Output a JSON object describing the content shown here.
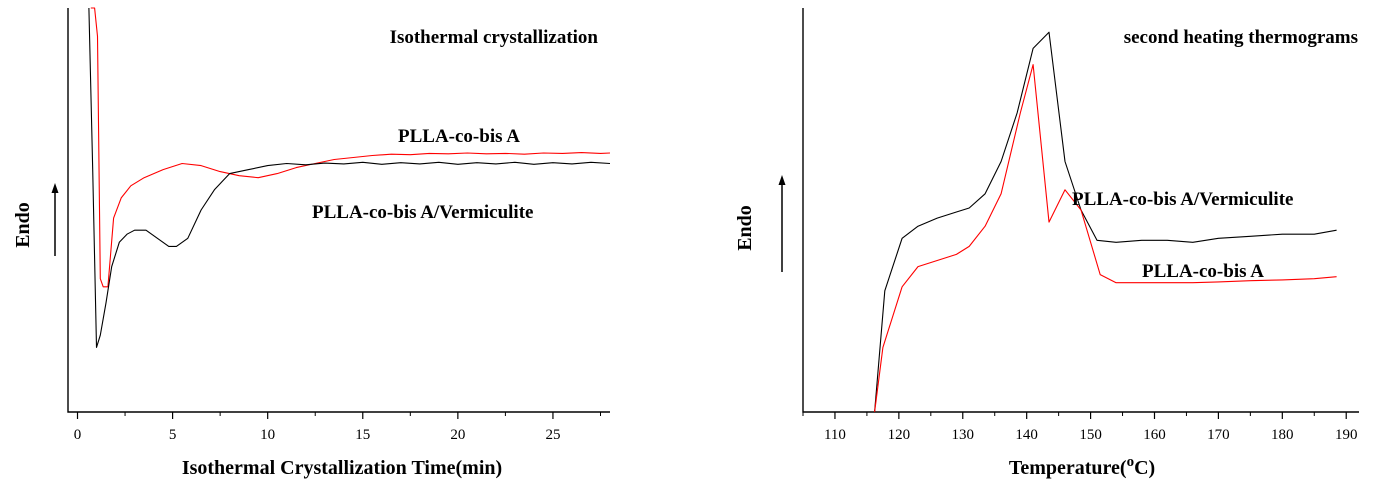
{
  "chart_data": [
    {
      "type": "line",
      "title": "Isothermal crystallization",
      "xlabel": "Isothermal Crystallization Time(min)",
      "ylabel": "Endo",
      "xlim": [
        -0.5,
        28
      ],
      "ylim": [
        0,
        1
      ],
      "xticks": [
        0,
        5,
        10,
        15,
        20,
        25
      ],
      "tick_labels": [
        "0",
        "5",
        "10",
        "15",
        "20",
        "25"
      ],
      "grid": false,
      "legend": "none",
      "series": [
        {
          "name": "PLLA-co-bis A",
          "color": "#ff0000",
          "label": "PLLA-co-bis A",
          "x": [
            0.7,
            0.9,
            1.05,
            1.2,
            1.35,
            1.6,
            1.9,
            2.3,
            2.8,
            3.5,
            4.5,
            5.5,
            6.5,
            7.5,
            8.5,
            9.5,
            10.5,
            11.5,
            12.5,
            13.5,
            14.5,
            15.5,
            16.5,
            17.5,
            18.5,
            19.5,
            20.5,
            21.5,
            22.5,
            23.5,
            24.5,
            25.5,
            26.5,
            27.5,
            28
          ],
          "y": [
            1.0,
            1.0,
            0.93,
            0.33,
            0.31,
            0.31,
            0.48,
            0.53,
            0.56,
            0.58,
            0.6,
            0.615,
            0.61,
            0.595,
            0.585,
            0.58,
            0.59,
            0.605,
            0.615,
            0.625,
            0.63,
            0.635,
            0.638,
            0.637,
            0.64,
            0.639,
            0.641,
            0.639,
            0.64,
            0.638,
            0.641,
            0.64,
            0.642,
            0.64,
            0.641
          ]
        },
        {
          "name": "PLLA-co-bis A/Vermiculite",
          "color": "#000000",
          "label": "PLLA-co-bis A/Vermiculite",
          "x": [
            0.6,
            0.8,
            1.0,
            1.2,
            1.5,
            1.8,
            2.2,
            2.6,
            3.0,
            3.6,
            4.2,
            4.8,
            5.2,
            5.8,
            6.5,
            7.2,
            8.0,
            9.0,
            10.0,
            11.0,
            12.0,
            13.0,
            14.0,
            15.0,
            16.0,
            17.0,
            18.0,
            19.0,
            20.0,
            21.0,
            22.0,
            23.0,
            24.0,
            25.0,
            26.0,
            27.0,
            28.0
          ],
          "y": [
            1.0,
            0.6,
            0.16,
            0.19,
            0.27,
            0.36,
            0.42,
            0.44,
            0.45,
            0.45,
            0.43,
            0.41,
            0.41,
            0.43,
            0.5,
            0.55,
            0.59,
            0.6,
            0.61,
            0.615,
            0.612,
            0.616,
            0.614,
            0.618,
            0.613,
            0.617,
            0.614,
            0.618,
            0.613,
            0.617,
            0.614,
            0.618,
            0.613,
            0.617,
            0.614,
            0.618,
            0.615
          ]
        }
      ]
    },
    {
      "type": "line",
      "title": "second heating thermograms",
      "xlabel": "Temperature(",
      "xlabel_sup": "o",
      "xlabel_suffix": "C)",
      "ylabel": "Endo",
      "xlim": [
        105,
        192
      ],
      "ylim": [
        0,
        1
      ],
      "xticks": [
        110,
        120,
        130,
        140,
        150,
        160,
        170,
        180,
        190
      ],
      "tick_labels": [
        "110",
        "120",
        "130",
        "140",
        "150",
        "160",
        "170",
        "180",
        "190"
      ],
      "grid": false,
      "legend": "none",
      "series": [
        {
          "name": "PLLA-co-bis A/Vermiculite",
          "color": "#000000",
          "label": "PLLA-co-bis A/Vermiculite",
          "x": [
            116.2,
            117.8,
            120.5,
            123,
            126,
            129,
            131,
            133.5,
            136,
            138.5,
            141,
            143.5,
            146,
            148.5,
            151,
            154,
            158,
            162,
            166,
            170,
            175,
            180,
            185,
            188.5
          ],
          "y": [
            0.0,
            0.3,
            0.43,
            0.46,
            0.48,
            0.495,
            0.505,
            0.54,
            0.62,
            0.74,
            0.9,
            0.94,
            0.62,
            0.5,
            0.425,
            0.42,
            0.425,
            0.425,
            0.42,
            0.43,
            0.435,
            0.44,
            0.44,
            0.45
          ]
        },
        {
          "name": "PLLA-co-bis A",
          "color": "#ff0000",
          "label": "PLLA-co-bis A",
          "x": [
            116.2,
            117.5,
            120.5,
            123,
            126,
            129,
            131,
            133.5,
            136,
            139,
            141,
            143.5,
            146,
            148.5,
            151.5,
            154,
            158,
            162,
            166,
            170,
            175,
            180,
            185,
            188.5
          ],
          "y": [
            0.0,
            0.16,
            0.31,
            0.36,
            0.375,
            0.39,
            0.41,
            0.46,
            0.54,
            0.74,
            0.86,
            0.47,
            0.55,
            0.5,
            0.34,
            0.32,
            0.32,
            0.32,
            0.32,
            0.322,
            0.325,
            0.327,
            0.33,
            0.335
          ]
        }
      ]
    }
  ]
}
